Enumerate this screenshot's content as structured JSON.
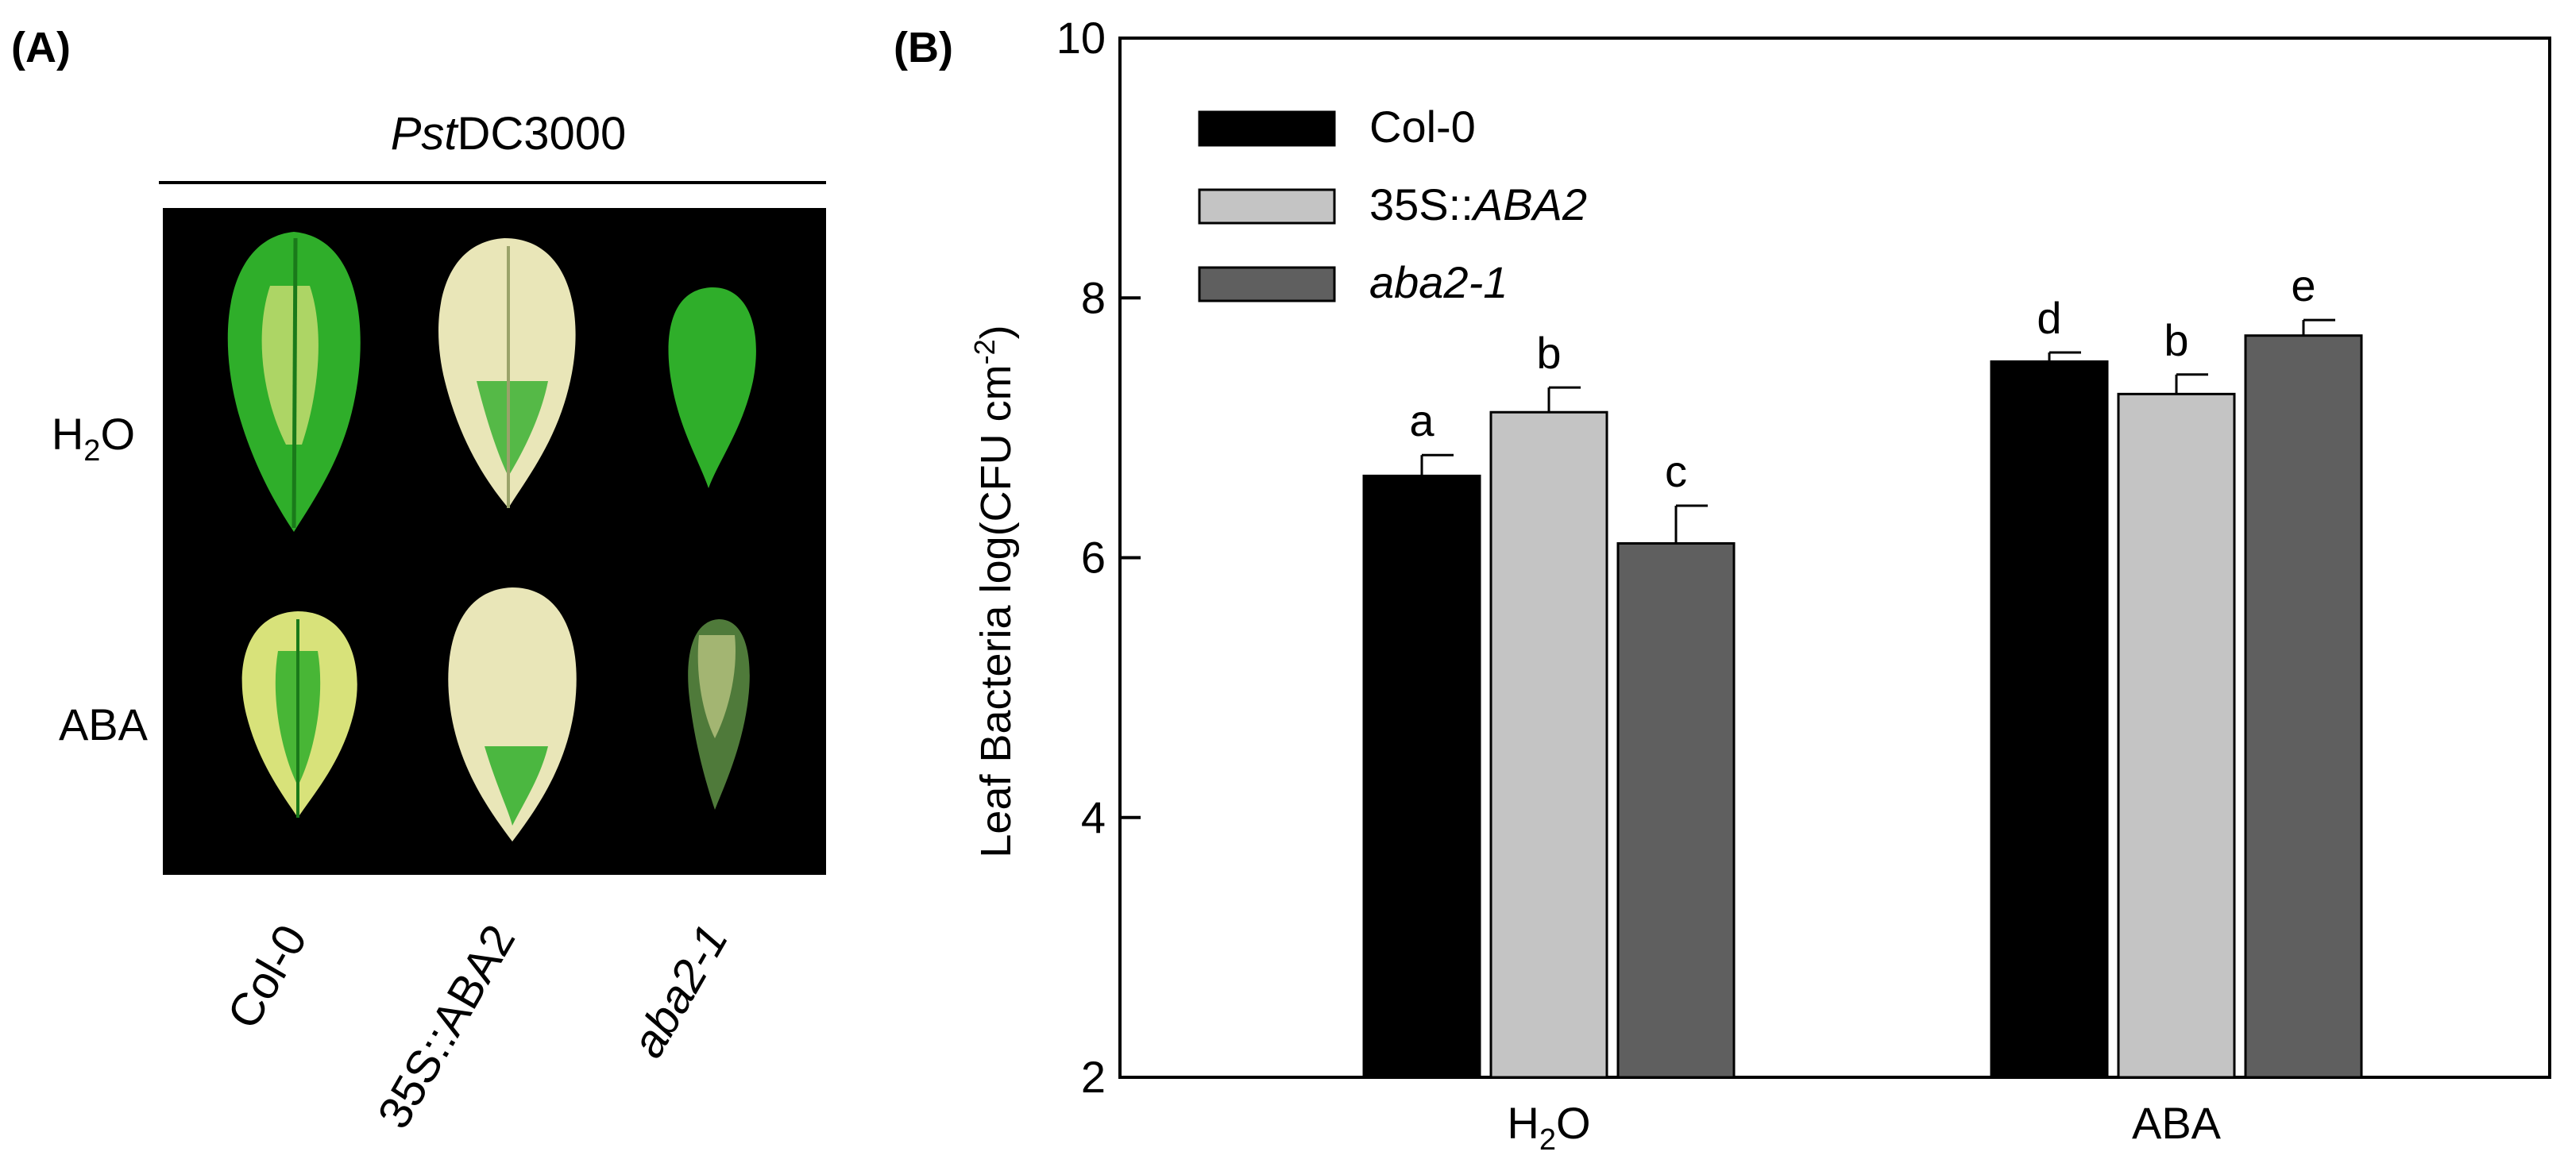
{
  "panelA": {
    "label": "(A)",
    "header_prefix": "Pst",
    "header_suffix": "DC3000",
    "row_labels": [
      {
        "main": "H",
        "sub": "2",
        "tail": "O"
      },
      {
        "main": "ABA",
        "sub": "",
        "tail": ""
      }
    ],
    "col_labels": [
      "Col-0",
      "35S::ABA2",
      "aba2-1"
    ],
    "photo_background": "#000000",
    "leaf_colors": {
      "green": "#2fae2a",
      "yellow": "#d8e27a",
      "pale": "#e9e6b8",
      "dark": "#1a7a1a"
    }
  },
  "panelB": {
    "label": "(B)",
    "ylabel_main": "Leaf Bacteria log(CFU cm",
    "ylabel_sup": "-2",
    "ylabel_close": ")"
  },
  "chart_data": {
    "type": "bar",
    "categories": [
      "H2O",
      "ABA"
    ],
    "category_labels": [
      {
        "main": "H",
        "sub": "2",
        "tail": "O"
      },
      {
        "main": "ABA",
        "sub": "",
        "tail": ""
      }
    ],
    "series": [
      {
        "name": "Col-0",
        "italic_part": "",
        "values": [
          6.63,
          7.51
        ],
        "errors": [
          0.16,
          0.07
        ],
        "letters": [
          "a",
          "d"
        ],
        "color": "#000000"
      },
      {
        "name": "35S::",
        "italic_part": "ABA2",
        "values": [
          7.12,
          7.26
        ],
        "errors": [
          0.19,
          0.15
        ],
        "letters": [
          "b",
          "b"
        ],
        "color": "#c4c4c4"
      },
      {
        "name": "",
        "italic_part": "aba2-1",
        "values": [
          6.11,
          7.71
        ],
        "errors": [
          0.29,
          0.12
        ],
        "letters": [
          "c",
          "e"
        ],
        "color": "#5f5f5f"
      }
    ],
    "ylim": [
      2,
      10
    ],
    "yticks": [
      2,
      4,
      6,
      8,
      10
    ],
    "legend_position": "top-left",
    "grid": false
  }
}
